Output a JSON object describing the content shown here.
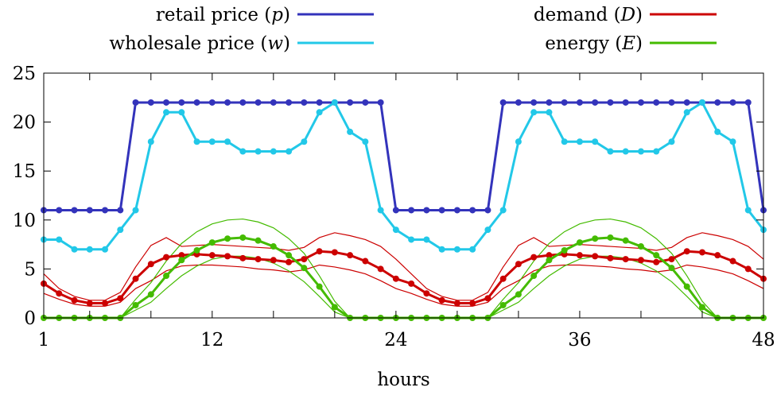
{
  "chart_data": {
    "type": "line",
    "xlabel": "hours",
    "ylabel": "",
    "xlim": [
      1,
      48
    ],
    "ylim": [
      0,
      25
    ],
    "xticks": [
      1,
      12,
      24,
      36,
      48
    ],
    "yticks": [
      0,
      5,
      10,
      15,
      20,
      25
    ],
    "grid": false,
    "legend_position": "top",
    "x": [
      1,
      2,
      3,
      4,
      5,
      6,
      7,
      8,
      9,
      10,
      11,
      12,
      13,
      14,
      15,
      16,
      17,
      18,
      19,
      20,
      21,
      22,
      23,
      24,
      25,
      26,
      27,
      28,
      29,
      30,
      31,
      32,
      33,
      34,
      35,
      36,
      37,
      38,
      39,
      40,
      41,
      42,
      43,
      44,
      45,
      46,
      47,
      48
    ],
    "series": [
      {
        "name": "retail price (p)",
        "name_text": "retail price (",
        "name_var": "p",
        "name_close": ")",
        "color": "#3333bb",
        "values": [
          11,
          11,
          11,
          11,
          11,
          11,
          22,
          22,
          22,
          22,
          22,
          22,
          22,
          22,
          22,
          22,
          22,
          22,
          22,
          22,
          22,
          22,
          22,
          11,
          11,
          11,
          11,
          11,
          11,
          11,
          22,
          22,
          22,
          22,
          22,
          22,
          22,
          22,
          22,
          22,
          22,
          22,
          22,
          22,
          22,
          22,
          22,
          11
        ]
      },
      {
        "name": "wholesale price (w)",
        "name_text": "wholesale price (",
        "name_var": "w",
        "name_close": ")",
        "color": "#22c8e8",
        "values": [
          8,
          8,
          7,
          7,
          7,
          9,
          11,
          18,
          21,
          21,
          18,
          18,
          18,
          17,
          17,
          17,
          17,
          18,
          21,
          22,
          19,
          18,
          11,
          9,
          8,
          8,
          7,
          7,
          7,
          9,
          11,
          18,
          21,
          21,
          18,
          18,
          18,
          17,
          17,
          17,
          17,
          18,
          21,
          22,
          19,
          18,
          11,
          9
        ]
      },
      {
        "name": "demand (D)",
        "name_text": "demand (",
        "name_var": "D",
        "name_close": ")",
        "color": "#cc0000",
        "values": [
          3.5,
          2.5,
          1.8,
          1.5,
          1.5,
          2,
          4,
          5.5,
          6.2,
          6.4,
          6.5,
          6.4,
          6.3,
          6.1,
          6,
          5.9,
          5.7,
          6,
          6.8,
          6.7,
          6.4,
          5.8,
          5,
          4,
          3.5,
          2.5,
          1.8,
          1.5,
          1.5,
          2,
          4,
          5.5,
          6.2,
          6.4,
          6.5,
          6.4,
          6.3,
          6.1,
          6,
          5.9,
          5.7,
          6,
          6.8,
          6.7,
          6.4,
          5.8,
          5,
          4
        ],
        "upper": [
          4.5,
          3,
          2.2,
          1.8,
          1.8,
          2.6,
          5.2,
          7.4,
          8.2,
          7.3,
          7.4,
          7.5,
          7.4,
          7.3,
          7.2,
          7.1,
          6.9,
          7.2,
          8.2,
          8.7,
          8.4,
          8.0,
          7.3,
          6,
          4.5,
          3,
          2.2,
          1.8,
          1.8,
          2.6,
          5.2,
          7.4,
          8.2,
          7.3,
          7.4,
          7.5,
          7.4,
          7.3,
          7.2,
          7.1,
          6.9,
          7.2,
          8.2,
          8.7,
          8.4,
          8.0,
          7.3,
          6
        ],
        "lower": [
          2.5,
          1.9,
          1.4,
          1.2,
          1.2,
          1.6,
          3,
          3.8,
          4.8,
          5.3,
          5.4,
          5.4,
          5.3,
          5.2,
          5.0,
          4.9,
          4.7,
          4.9,
          5.4,
          5.2,
          4.9,
          4.5,
          3.8,
          3,
          2.5,
          1.9,
          1.4,
          1.2,
          1.2,
          1.6,
          3,
          3.8,
          4.8,
          5.3,
          5.4,
          5.4,
          5.3,
          5.2,
          5.0,
          4.9,
          4.7,
          4.9,
          5.4,
          5.2,
          4.9,
          4.5,
          3.8,
          3
        ]
      },
      {
        "name": "energy (E)",
        "name_text": "energy (",
        "name_var": "E",
        "name_close": ")",
        "color": "#44bb00",
        "values": [
          0,
          0,
          0,
          0,
          0,
          0,
          1.3,
          2.4,
          4.3,
          5.9,
          6.9,
          7.7,
          8.1,
          8.2,
          7.9,
          7.3,
          6.4,
          5.1,
          3.2,
          1.1,
          0,
          0,
          0,
          0,
          0,
          0,
          0,
          0,
          0,
          0,
          1.3,
          2.4,
          4.3,
          5.9,
          6.9,
          7.7,
          8.1,
          8.2,
          7.9,
          7.3,
          6.4,
          5.1,
          3.2,
          1.1,
          0,
          0,
          0,
          0
        ],
        "upper": [
          0,
          0,
          0,
          0,
          0,
          0,
          1.9,
          3.6,
          5.8,
          7.6,
          8.8,
          9.6,
          10.0,
          10.1,
          9.8,
          9.2,
          8.1,
          6.6,
          4.3,
          1.7,
          0,
          0,
          0,
          0,
          0,
          0,
          0,
          0,
          0,
          0,
          1.9,
          3.6,
          5.8,
          7.6,
          8.8,
          9.6,
          10.0,
          10.1,
          9.8,
          9.2,
          8.1,
          6.6,
          4.3,
          1.7,
          0,
          0,
          0,
          0
        ],
        "lower": [
          0,
          0,
          0,
          0,
          0,
          0,
          0.8,
          1.6,
          3.0,
          4.3,
          5.3,
          6.0,
          6.3,
          6.3,
          6.1,
          5.6,
          4.8,
          3.7,
          2.2,
          0.6,
          0,
          0,
          0,
          0,
          0,
          0,
          0,
          0,
          0,
          0,
          0.8,
          1.6,
          3.0,
          4.3,
          5.3,
          6.0,
          6.3,
          6.3,
          6.1,
          5.6,
          4.8,
          3.7,
          2.2,
          0.6,
          0,
          0,
          0,
          0
        ]
      }
    ]
  }
}
